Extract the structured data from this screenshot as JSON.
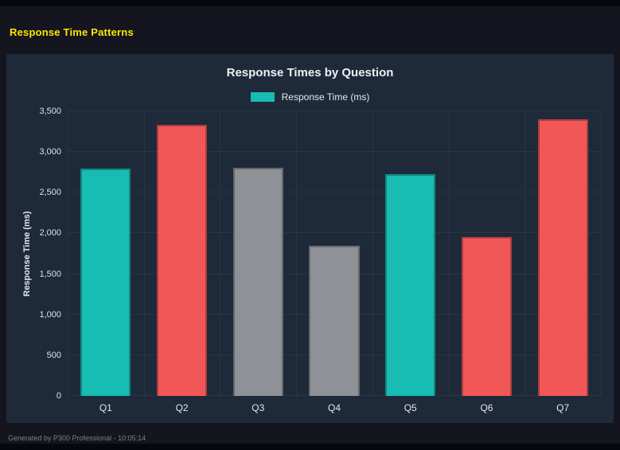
{
  "page": {
    "title": "Response Time Patterns",
    "footer": "Generated by P300 Professional - 10:05:14"
  },
  "colors": {
    "teal": "#17bcb3",
    "red": "#f25757",
    "gray": "#8e9196",
    "title_yellow": "#ffe600",
    "panel_background": "#1e2a39",
    "page_background": "#15151f"
  },
  "chart_data": {
    "type": "bar",
    "title": "Response Times by Question",
    "legend": [
      "Response Time (ms)"
    ],
    "legend_position": "top",
    "categories": [
      "Q1",
      "Q2",
      "Q3",
      "Q4",
      "Q5",
      "Q6",
      "Q7"
    ],
    "values": [
      2800,
      3330,
      2810,
      1850,
      2730,
      1960,
      3400
    ],
    "bar_colors": [
      "#17bcb3",
      "#f25757",
      "#8e9196",
      "#8e9196",
      "#17bcb3",
      "#f25757",
      "#f25757"
    ],
    "xlabel": "",
    "ylabel": "Response Time (ms)",
    "ylim": [
      0,
      3500
    ],
    "ytick_step": 500,
    "grid": true
  }
}
